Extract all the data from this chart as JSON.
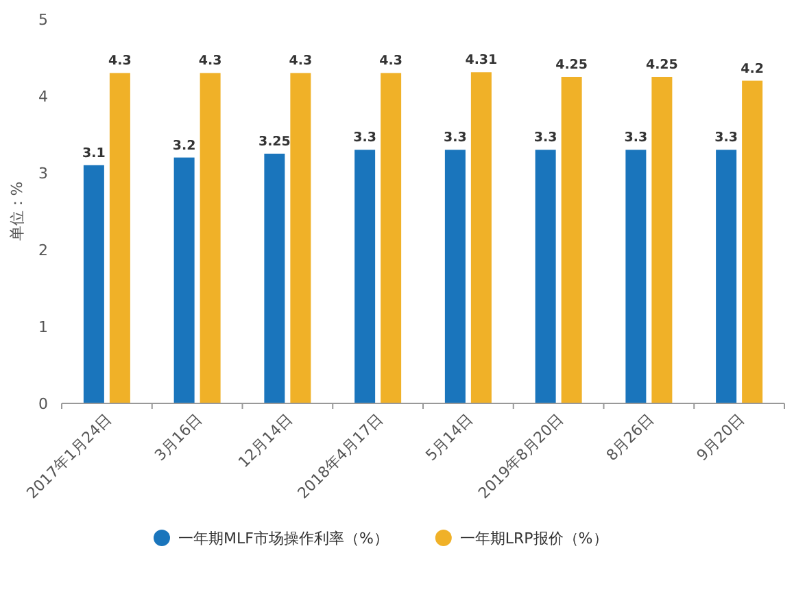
{
  "chart_data": {
    "type": "bar",
    "ylabel": "单位：%",
    "categories": [
      "2017年1月24日",
      "3月16日",
      "12月14日",
      "2018年4月17日",
      "5月14日",
      "2019年8月20日",
      "8月26日",
      "9月20日"
    ],
    "series": [
      {
        "name": "一年期MLF市场操作利率（%）",
        "color": "#1a75bc",
        "values": [
          3.1,
          3.2,
          3.25,
          3.3,
          3.3,
          3.3,
          3.3,
          3.3
        ]
      },
      {
        "name": "一年期LRP报价（%）",
        "color": "#f0b128",
        "values": [
          4.3,
          4.3,
          4.3,
          4.3,
          4.31,
          4.25,
          4.25,
          4.2
        ]
      }
    ],
    "ylim": [
      0,
      5
    ],
    "yticks": [
      0,
      1,
      2,
      3,
      4,
      5
    ],
    "data_labels": true,
    "grid": false,
    "legend": "bottom"
  }
}
